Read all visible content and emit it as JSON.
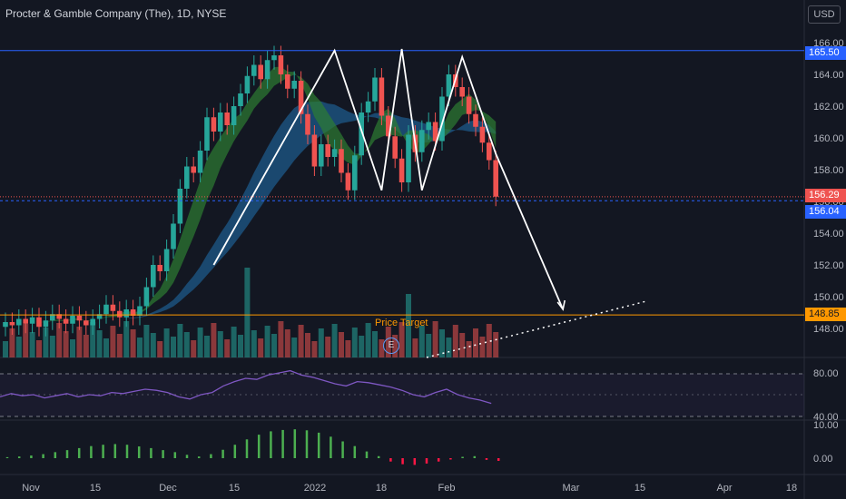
{
  "header": {
    "title": "Procter & Gamble Company (The), 1D, NYSE",
    "currency": "USD"
  },
  "colors": {
    "bg": "#131722",
    "up": "#26a69a",
    "down": "#ef5350",
    "pattern": "#ffffff",
    "resistance": "#2962ff",
    "support": "#ff9800",
    "ribbon_fast": "#2e7d32",
    "ribbon_slow": "#1e5a8a",
    "rsi": "#7e57c2",
    "hist_up": "#4caf50",
    "hist_down": "#ff1744"
  },
  "price_labels": {
    "resistance": "165.50",
    "last": "156.29",
    "prev": "156.04",
    "target": "148.85"
  },
  "annotations": {
    "target_label": "Price Target",
    "earnings_badge": "E"
  },
  "chart_data": [
    {
      "type": "candlestick",
      "panel": "price",
      "x_tick_labels": [
        "Nov",
        "15",
        "Dec",
        "15",
        "2022",
        "18",
        "Feb",
        "Mar",
        "15",
        "Apr",
        "18"
      ],
      "y_tick_labels": [
        "148.00",
        "150.00",
        "152.00",
        "154.00",
        "156.00",
        "158.00",
        "160.00",
        "162.00",
        "164.00",
        "166.00"
      ],
      "ylim": [
        147.3,
        166.5
      ],
      "levels": {
        "resistance": 165.5,
        "support": 148.85,
        "last": 156.29,
        "prev_close": 156.04
      },
      "close_series_approx": [
        148.4,
        148.2,
        148.6,
        148.3,
        148.7,
        148.1,
        148.5,
        148.9,
        148.6,
        148.3,
        148.8,
        148.5,
        148.2,
        148.6,
        148.9,
        149.5,
        149.1,
        148.7,
        149.2,
        148.8,
        149.4,
        150.6,
        152.0,
        151.6,
        153.0,
        154.6,
        156.8,
        158.2,
        157.8,
        159.2,
        161.3,
        160.4,
        161.6,
        160.8,
        162.0,
        162.8,
        163.9,
        164.6,
        163.7,
        164.9,
        165.2,
        164.0,
        163.1,
        163.6,
        161.5,
        160.2,
        158.2,
        159.6,
        158.8,
        159.3,
        157.8,
        156.7,
        158.9,
        161.6,
        162.3,
        163.8,
        161.4,
        160.1,
        158.7,
        157.2,
        160.2,
        159.1,
        160.5,
        161.0,
        159.8,
        162.6,
        164.0,
        163.2,
        162.6,
        161.5,
        160.7,
        159.7,
        158.6,
        156.3
      ]
    },
    {
      "type": "line",
      "panel": "rsi",
      "y_tick_labels": [
        "80.00",
        "40.00"
      ],
      "ylim": [
        20,
        90
      ],
      "bands": [
        70,
        30
      ],
      "values_approx": [
        48,
        51,
        49,
        50,
        47,
        49,
        51,
        48,
        50,
        49,
        52,
        51,
        53,
        55,
        54,
        52,
        48,
        46,
        50,
        52,
        58,
        62,
        65,
        64,
        68,
        70,
        72,
        68,
        66,
        63,
        60,
        58,
        62,
        61,
        59,
        57,
        54,
        50,
        48,
        52,
        55,
        50,
        47,
        45,
        42
      ]
    },
    {
      "type": "bar",
      "panel": "histogram",
      "y_tick_labels": [
        "10.00",
        "0.00"
      ],
      "ylim": [
        -3,
        12
      ],
      "values_approx": [
        0.3,
        0.5,
        0.8,
        1.2,
        1.8,
        2.4,
        3.0,
        3.6,
        4.0,
        4.2,
        4.0,
        3.5,
        3.0,
        2.4,
        1.8,
        1.0,
        0.5,
        1.2,
        2.5,
        4.0,
        5.6,
        7.0,
        8.0,
        8.4,
        8.6,
        8.3,
        7.6,
        6.4,
        5.0,
        3.6,
        2.0,
        0.6,
        -1.0,
        -1.8,
        -2.0,
        -1.6,
        -1.0,
        -0.4,
        0.4,
        0.6,
        -0.5,
        -0.8
      ]
    }
  ]
}
